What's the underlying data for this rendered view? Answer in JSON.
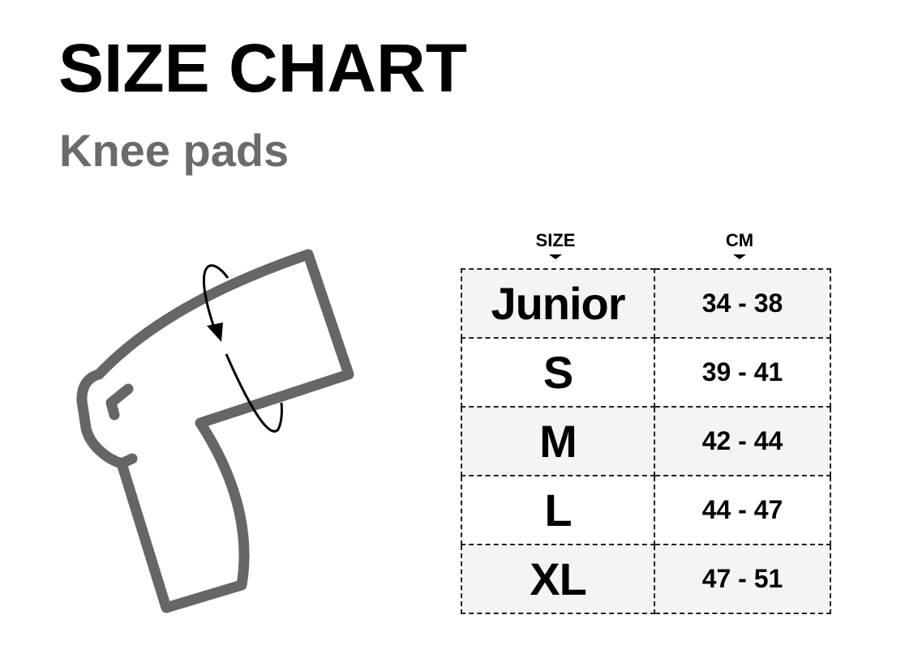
{
  "title": "SIZE CHART",
  "subtitle": "Knee pads",
  "colors": {
    "text": "#000000",
    "subtitle": "#6b6b6b",
    "outline": "#666666",
    "row_shade": "#f4f4f4"
  },
  "icons": [
    "knee-outline-icon",
    "rotation-arrow-icon"
  ],
  "table": {
    "headers": [
      "SIZE",
      "CM"
    ],
    "rows": [
      {
        "size": "Junior",
        "cm": "34 - 38"
      },
      {
        "size": "S",
        "cm": "39 - 41"
      },
      {
        "size": "M",
        "cm": "42 - 44"
      },
      {
        "size": "L",
        "cm": "44 - 47"
      },
      {
        "size": "XL",
        "cm": "47 - 51"
      }
    ]
  }
}
